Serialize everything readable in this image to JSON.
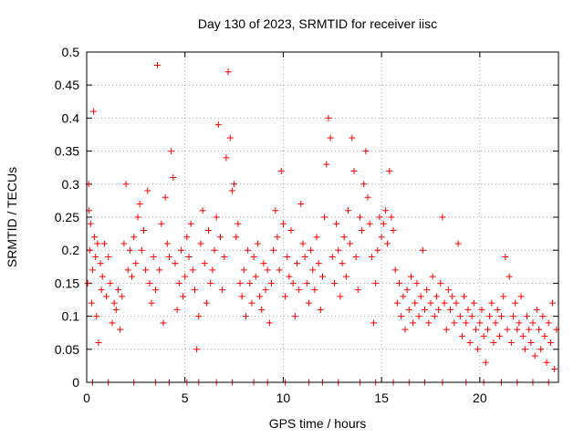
{
  "chart_data": {
    "type": "scatter",
    "title": "Day 130 of 2023, SRMTID for receiver iisc",
    "xlabel": "GPS time / hours",
    "ylabel": "SRMTID / TECUs",
    "xlim": [
      0,
      24
    ],
    "ylim": [
      0,
      0.5
    ],
    "x_ticks": [
      0,
      5,
      10,
      15,
      20
    ],
    "x_tick_labels": [
      "0",
      "5",
      "10",
      "15",
      "20"
    ],
    "y_ticks": [
      0,
      0.05,
      0.1,
      0.15,
      0.2,
      0.25,
      0.3,
      0.35,
      0.4,
      0.45,
      0.5
    ],
    "y_tick_labels": [
      "0",
      "0.05",
      "0.1",
      "0.15",
      "0.2",
      "0.25",
      "0.3",
      "0.35",
      "0.4",
      "0.45",
      "0.5"
    ],
    "grid": true,
    "legend": "none",
    "marker": "plus",
    "color": "#ff0000",
    "series": [
      {
        "points": [
          [
            0.05,
            0.15
          ],
          [
            0.1,
            0.3
          ],
          [
            0.12,
            0.26
          ],
          [
            0.15,
            0.2
          ],
          [
            0.2,
            0.24
          ],
          [
            0.25,
            0.12
          ],
          [
            0.3,
            0.17
          ],
          [
            0.35,
            0.41
          ],
          [
            0.4,
            0.22
          ],
          [
            0.45,
            0.19
          ],
          [
            0.5,
            0.1
          ],
          [
            0.55,
            0.21
          ],
          [
            0.6,
            0.06
          ],
          [
            0.7,
            0.18
          ],
          [
            0.75,
            0.14
          ],
          [
            0.8,
            0.16
          ],
          [
            0.9,
            0.21
          ],
          [
            1.0,
            0.13
          ],
          [
            1.1,
            0.19
          ],
          [
            1.2,
            0.15
          ],
          [
            1.3,
            0.09
          ],
          [
            1.4,
            0.12
          ],
          [
            1.5,
            0.11
          ],
          [
            1.6,
            0.14
          ],
          [
            1.7,
            0.08
          ],
          [
            1.8,
            0.13
          ],
          [
            1.9,
            0.21
          ],
          [
            2.0,
            0.3
          ],
          [
            2.1,
            0.17
          ],
          [
            2.2,
            0.2
          ],
          [
            2.3,
            0.16
          ],
          [
            2.4,
            0.22
          ],
          [
            2.5,
            0.18
          ],
          [
            2.6,
            0.25
          ],
          [
            2.7,
            0.27
          ],
          [
            2.8,
            0.2
          ],
          [
            2.9,
            0.23
          ],
          [
            3.0,
            0.17
          ],
          [
            3.1,
            0.29
          ],
          [
            3.2,
            0.15
          ],
          [
            3.3,
            0.12
          ],
          [
            3.4,
            0.19
          ],
          [
            3.5,
            0.14
          ],
          [
            3.6,
            0.48
          ],
          [
            3.7,
            0.17
          ],
          [
            3.8,
            0.24
          ],
          [
            3.9,
            0.09
          ],
          [
            4.0,
            0.28
          ],
          [
            4.1,
            0.21
          ],
          [
            4.2,
            0.19
          ],
          [
            4.3,
            0.35
          ],
          [
            4.4,
            0.31
          ],
          [
            4.5,
            0.18
          ],
          [
            4.6,
            0.11
          ],
          [
            4.7,
            0.15
          ],
          [
            4.8,
            0.2
          ],
          [
            4.9,
            0.13
          ],
          [
            5.0,
            0.16
          ],
          [
            5.1,
            0.22
          ],
          [
            5.2,
            0.19
          ],
          [
            5.3,
            0.24
          ],
          [
            5.4,
            0.17
          ],
          [
            5.5,
            0.14
          ],
          [
            5.6,
            0.05
          ],
          [
            5.7,
            0.1
          ],
          [
            5.8,
            0.21
          ],
          [
            5.9,
            0.26
          ],
          [
            6.0,
            0.18
          ],
          [
            6.1,
            0.12
          ],
          [
            6.2,
            0.23
          ],
          [
            6.3,
            0.15
          ],
          [
            6.4,
            0.17
          ],
          [
            6.5,
            0.2
          ],
          [
            6.6,
            0.25
          ],
          [
            6.7,
            0.39
          ],
          [
            6.8,
            0.22
          ],
          [
            6.9,
            0.14
          ],
          [
            7.0,
            0.19
          ],
          [
            7.1,
            0.34
          ],
          [
            7.2,
            0.47
          ],
          [
            7.3,
            0.37
          ],
          [
            7.4,
            0.29
          ],
          [
            7.5,
            0.3
          ],
          [
            7.6,
            0.22
          ],
          [
            7.7,
            0.24
          ],
          [
            7.8,
            0.15
          ],
          [
            7.9,
            0.13
          ],
          [
            8.0,
            0.17
          ],
          [
            8.1,
            0.1
          ],
          [
            8.2,
            0.2
          ],
          [
            8.3,
            0.15
          ],
          [
            8.4,
            0.12
          ],
          [
            8.5,
            0.19
          ],
          [
            8.6,
            0.16
          ],
          [
            8.7,
            0.21
          ],
          [
            8.8,
            0.13
          ],
          [
            8.9,
            0.11
          ],
          [
            9.0,
            0.18
          ],
          [
            9.1,
            0.14
          ],
          [
            9.2,
            0.17
          ],
          [
            9.3,
            0.09
          ],
          [
            9.4,
            0.15
          ],
          [
            9.5,
            0.2
          ],
          [
            9.6,
            0.26
          ],
          [
            9.7,
            0.22
          ],
          [
            9.8,
            0.17
          ],
          [
            9.9,
            0.32
          ],
          [
            10.0,
            0.24
          ],
          [
            10.1,
            0.13
          ],
          [
            10.2,
            0.19
          ],
          [
            10.3,
            0.16
          ],
          [
            10.4,
            0.23
          ],
          [
            10.5,
            0.15
          ],
          [
            10.6,
            0.1
          ],
          [
            10.7,
            0.18
          ],
          [
            10.8,
            0.14
          ],
          [
            10.9,
            0.27
          ],
          [
            11.0,
            0.21
          ],
          [
            11.1,
            0.19
          ],
          [
            11.2,
            0.15
          ],
          [
            11.3,
            0.12
          ],
          [
            11.4,
            0.2
          ],
          [
            11.5,
            0.17
          ],
          [
            11.6,
            0.14
          ],
          [
            11.7,
            0.22
          ],
          [
            11.8,
            0.18
          ],
          [
            11.9,
            0.11
          ],
          [
            12.0,
            0.16
          ],
          [
            12.1,
            0.25
          ],
          [
            12.2,
            0.33
          ],
          [
            12.3,
            0.4
          ],
          [
            12.4,
            0.37
          ],
          [
            12.5,
            0.19
          ],
          [
            12.6,
            0.15
          ],
          [
            12.7,
            0.24
          ],
          [
            12.8,
            0.2
          ],
          [
            12.9,
            0.13
          ],
          [
            13.0,
            0.18
          ],
          [
            13.1,
            0.22
          ],
          [
            13.2,
            0.16
          ],
          [
            13.3,
            0.26
          ],
          [
            13.4,
            0.21
          ],
          [
            13.5,
            0.37
          ],
          [
            13.6,
            0.32
          ],
          [
            13.7,
            0.19
          ],
          [
            13.8,
            0.14
          ],
          [
            13.9,
            0.25
          ],
          [
            14.0,
            0.23
          ],
          [
            14.1,
            0.3
          ],
          [
            14.2,
            0.35
          ],
          [
            14.3,
            0.28
          ],
          [
            14.4,
            0.24
          ],
          [
            14.5,
            0.19
          ],
          [
            14.6,
            0.09
          ],
          [
            14.7,
            0.15
          ],
          [
            14.8,
            0.2
          ],
          [
            14.9,
            0.25
          ],
          [
            15.0,
            0.22
          ],
          [
            15.1,
            0.24
          ],
          [
            15.2,
            0.26
          ],
          [
            15.3,
            0.21
          ],
          [
            15.4,
            0.32
          ],
          [
            15.5,
            0.25
          ],
          [
            15.6,
            0.23
          ],
          [
            15.7,
            0.17
          ],
          [
            15.8,
            0.12
          ],
          [
            15.9,
            0.15
          ],
          [
            16.0,
            0.1
          ],
          [
            16.1,
            0.13
          ],
          [
            16.2,
            0.08
          ],
          [
            16.3,
            0.14
          ],
          [
            16.4,
            0.11
          ],
          [
            16.5,
            0.16
          ],
          [
            16.6,
            0.09
          ],
          [
            16.7,
            0.12
          ],
          [
            16.8,
            0.15
          ],
          [
            16.9,
            0.1
          ],
          [
            17.0,
            0.13
          ],
          [
            17.1,
            0.2
          ],
          [
            17.2,
            0.11
          ],
          [
            17.3,
            0.14
          ],
          [
            17.4,
            0.09
          ],
          [
            17.5,
            0.12
          ],
          [
            17.6,
            0.16
          ],
          [
            17.7,
            0.1
          ],
          [
            17.8,
            0.13
          ],
          [
            17.9,
            0.11
          ],
          [
            18.0,
            0.15
          ],
          [
            18.1,
            0.25
          ],
          [
            18.2,
            0.12
          ],
          [
            18.3,
            0.08
          ],
          [
            18.4,
            0.14
          ],
          [
            18.5,
            0.11
          ],
          [
            18.6,
            0.13
          ],
          [
            18.7,
            0.09
          ],
          [
            18.8,
            0.12
          ],
          [
            18.9,
            0.21
          ],
          [
            19.0,
            0.1
          ],
          [
            19.1,
            0.07
          ],
          [
            19.2,
            0.13
          ],
          [
            19.3,
            0.09
          ],
          [
            19.4,
            0.11
          ],
          [
            19.5,
            0.06
          ],
          [
            19.6,
            0.1
          ],
          [
            19.7,
            0.12
          ],
          [
            19.8,
            0.08
          ],
          [
            19.9,
            0.05
          ],
          [
            20.0,
            0.09
          ],
          [
            20.1,
            0.11
          ],
          [
            20.2,
            0.07
          ],
          [
            20.3,
            0.03
          ],
          [
            20.4,
            0.08
          ],
          [
            20.5,
            0.1
          ],
          [
            20.6,
            0.12
          ],
          [
            20.7,
            0.06
          ],
          [
            20.8,
            0.09
          ],
          [
            20.9,
            0.11
          ],
          [
            21.0,
            0.07
          ],
          [
            21.1,
            0.1
          ],
          [
            21.2,
            0.13
          ],
          [
            21.3,
            0.19
          ],
          [
            21.4,
            0.08
          ],
          [
            21.5,
            0.16
          ],
          [
            21.6,
            0.06
          ],
          [
            21.7,
            0.1
          ],
          [
            21.8,
            0.12
          ],
          [
            21.9,
            0.08
          ],
          [
            22.0,
            0.09
          ],
          [
            22.1,
            0.13
          ],
          [
            22.2,
            0.07
          ],
          [
            22.3,
            0.05
          ],
          [
            22.4,
            0.1
          ],
          [
            22.5,
            0.08
          ],
          [
            22.6,
            0.06
          ],
          [
            22.7,
            0.09
          ],
          [
            22.8,
            0.04
          ],
          [
            22.9,
            0.11
          ],
          [
            23.0,
            0.08
          ],
          [
            23.1,
            0.05
          ],
          [
            23.2,
            0.1
          ],
          [
            23.3,
            0.07
          ],
          [
            23.4,
            0.03
          ],
          [
            23.5,
            0.09
          ],
          [
            23.6,
            0.06
          ],
          [
            23.7,
            0.12
          ],
          [
            23.8,
            0.02
          ],
          [
            23.9,
            0.08
          ],
          [
            0.3,
            0.0
          ],
          [
            1.1,
            0.0
          ],
          [
            2.4,
            0.0
          ],
          [
            3.5,
            0.0
          ],
          [
            4.2,
            0.0
          ],
          [
            5.1,
            0.0
          ],
          [
            5.7,
            0.0
          ],
          [
            6.6,
            0.0
          ],
          [
            7.4,
            0.0
          ],
          [
            8.5,
            0.0
          ],
          [
            9.2,
            0.0
          ],
          [
            10.1,
            0.0
          ],
          [
            11.3,
            0.0
          ],
          [
            12.0,
            0.0
          ],
          [
            12.8,
            0.0
          ],
          [
            13.9,
            0.0
          ],
          [
            14.7,
            0.0
          ],
          [
            15.6,
            0.0
          ],
          [
            16.4,
            0.0
          ],
          [
            17.2,
            0.0
          ],
          [
            18.1,
            0.0
          ],
          [
            19.3,
            0.0
          ],
          [
            20.2,
            0.0
          ],
          [
            21.1,
            0.0
          ],
          [
            21.9,
            0.0
          ],
          [
            22.7,
            0.0
          ],
          [
            23.5,
            0.0
          ]
        ]
      }
    ]
  }
}
